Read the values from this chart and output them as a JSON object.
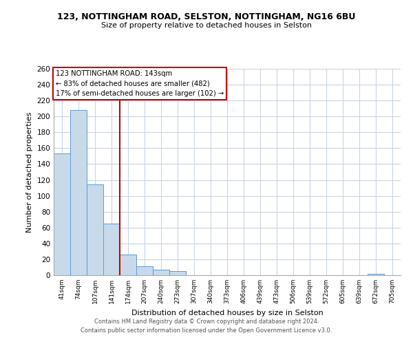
{
  "title": "123, NOTTINGHAM ROAD, SELSTON, NOTTINGHAM, NG16 6BU",
  "subtitle": "Size of property relative to detached houses in Selston",
  "xlabel": "Distribution of detached houses by size in Selston",
  "ylabel": "Number of detached properties",
  "bin_labels": [
    "41sqm",
    "74sqm",
    "107sqm",
    "141sqm",
    "174sqm",
    "207sqm",
    "240sqm",
    "273sqm",
    "307sqm",
    "340sqm",
    "373sqm",
    "406sqm",
    "439sqm",
    "473sqm",
    "506sqm",
    "539sqm",
    "572sqm",
    "605sqm",
    "639sqm",
    "672sqm",
    "705sqm"
  ],
  "bar_heights": [
    153,
    208,
    114,
    65,
    26,
    11,
    7,
    5,
    0,
    0,
    0,
    0,
    0,
    0,
    0,
    0,
    0,
    0,
    0,
    2,
    0
  ],
  "bar_color": "#c8daea",
  "bar_edge_color": "#5b9bd5",
  "vline_x_index": 3,
  "vline_color": "#cc0000",
  "ylim": [
    0,
    260
  ],
  "yticks": [
    0,
    20,
    40,
    60,
    80,
    100,
    120,
    140,
    160,
    180,
    200,
    220,
    240,
    260
  ],
  "annotation_title": "123 NOTTINGHAM ROAD: 143sqm",
  "annotation_line1": "← 83% of detached houses are smaller (482)",
  "annotation_line2": "17% of semi-detached houses are larger (102) →",
  "annotation_box_color": "#ffffff",
  "annotation_box_edge": "#cc0000",
  "footer1": "Contains HM Land Registry data © Crown copyright and database right 2024.",
  "footer2": "Contains public sector information licensed under the Open Government Licence v3.0.",
  "background_color": "#ffffff",
  "grid_color": "#c8d4e4"
}
